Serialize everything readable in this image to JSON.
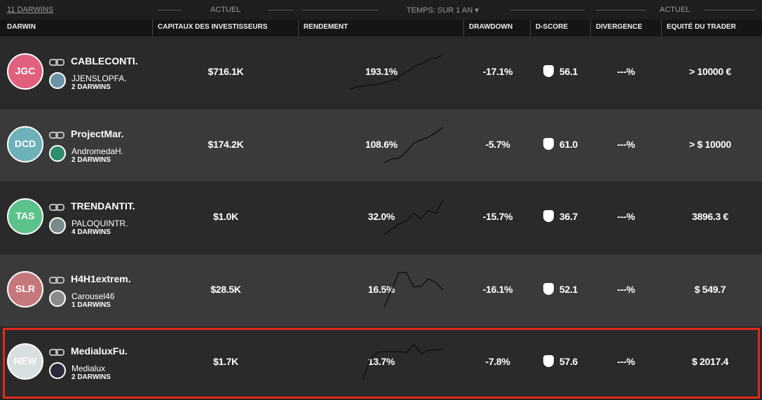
{
  "header": {
    "count": "11 DARWINS",
    "actuel_left": "ACTUEL",
    "period": "TEMPS: SUR 1 AN",
    "actuel_right": "ACTUEL"
  },
  "columns": [
    "DARWIN",
    "CAPITAUX DES INVESTISSEURS",
    "RENDEMENT",
    "DRAWDOWN",
    "D-SCORE",
    "DIVERGENCE",
    "EQUITÉ DU TRADER"
  ],
  "rows": [
    {
      "code": "JGC",
      "name": "CABLECONTI.",
      "trader": "JJENSLOPFA.",
      "darwins": "2 DARWINS",
      "capital": "$716.1K",
      "return": "193.1%",
      "drawdown": "-17.1%",
      "dscore": "56.1",
      "divergence": "---%",
      "equity": "> 10000 €",
      "sparkline": [
        0,
        8,
        10,
        14,
        14,
        18,
        24,
        30,
        45,
        55,
        70,
        75,
        88,
        90,
        100
      ]
    },
    {
      "code": "DCD",
      "name": "ProjectMar.",
      "trader": "AndromedaH.",
      "darwins": "2 DARWINS",
      "capital": "$174.2K",
      "return": "108.6%",
      "drawdown": "-5.7%",
      "dscore": "61.0",
      "divergence": "---%",
      "equity": "> $ 10000",
      "sparkline": [
        0,
        10,
        12,
        30,
        55,
        65,
        72,
        85,
        100
      ]
    },
    {
      "code": "TAS",
      "name": "TRENDANTIT.",
      "trader": "PALOQUINTR.",
      "darwins": "4 DARWINS",
      "capital": "$1.0K",
      "return": "32.0%",
      "drawdown": "-15.7%",
      "dscore": "36.7",
      "divergence": "---%",
      "equity": "3896.3 €",
      "sparkline": [
        0,
        15,
        30,
        38,
        62,
        45,
        70,
        60,
        100
      ]
    },
    {
      "code": "SLR",
      "name": "H4H1extrem.",
      "trader": "Carousel46",
      "darwins": "1 DARWINS",
      "capital": "$28.5K",
      "return": "16.5%",
      "drawdown": "-16.1%",
      "dscore": "52.1",
      "divergence": "---%",
      "equity": "$ 549.7",
      "sparkline": [
        0,
        50,
        100,
        100,
        60,
        60,
        82,
        72,
        50
      ]
    },
    {
      "code": "NEW",
      "name": "MedialuxFu.",
      "trader": "Medialux",
      "darwins": "2 DARWINS",
      "capital": "$1.7K",
      "return": "13.7%",
      "drawdown": "-7.8%",
      "dscore": "57.6",
      "divergence": "---%",
      "equity": "$ 2017.4",
      "sparkline": [
        0,
        60,
        78,
        80,
        80,
        80,
        78,
        100,
        75,
        83,
        85,
        88
      ]
    }
  ]
}
